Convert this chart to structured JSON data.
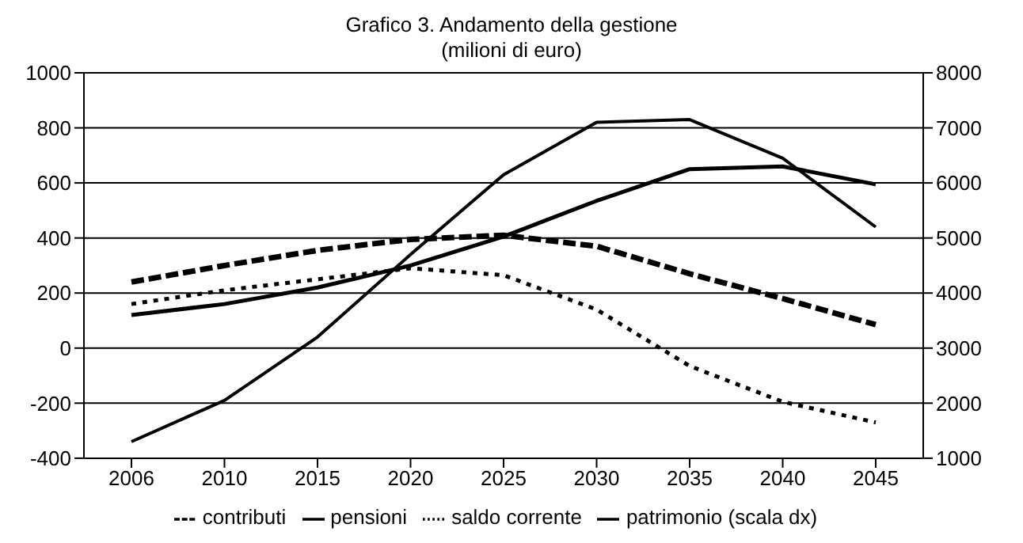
{
  "chart_data": {
    "type": "line",
    "title": "Grafico 3. Andamento della gestione",
    "subtitle": "(milioni di euro)",
    "categories": [
      "2006",
      "2010",
      "2015",
      "2020",
      "2025",
      "2030",
      "2035",
      "2040",
      "2045"
    ],
    "series": [
      {
        "name": "contributi",
        "color": "#000000",
        "line_style": "dashed",
        "values": [
          240,
          300,
          355,
          395,
          410,
          370,
          270,
          180,
          85
        ]
      },
      {
        "name": "pensioni",
        "color": "#000000",
        "line_style": "solid",
        "values": [
          120,
          160,
          220,
          300,
          405,
          535,
          650,
          660,
          595
        ]
      },
      {
        "name": "saldo corrente",
        "color": "#000000",
        "line_style": "dotted",
        "values": [
          160,
          210,
          250,
          290,
          265,
          140,
          -65,
          -195,
          -270
        ]
      },
      {
        "name": "patrimonio (scala dx)",
        "color": "#000000",
        "line_style": "solid",
        "axis": "y2",
        "values": [
          1300,
          2050,
          3200,
          4700,
          6150,
          7100,
          7150,
          6450,
          5200
        ]
      }
    ],
    "ylim": [
      -400,
      1000
    ],
    "yticks": [
      -400,
      -200,
      0,
      200,
      400,
      600,
      800,
      1000
    ],
    "y2lim": [
      1000,
      8000
    ],
    "y2ticks": [
      1000,
      2000,
      3000,
      4000,
      5000,
      6000,
      7000,
      8000
    ],
    "grid": "y",
    "legend": "bottom",
    "marker": "none"
  }
}
